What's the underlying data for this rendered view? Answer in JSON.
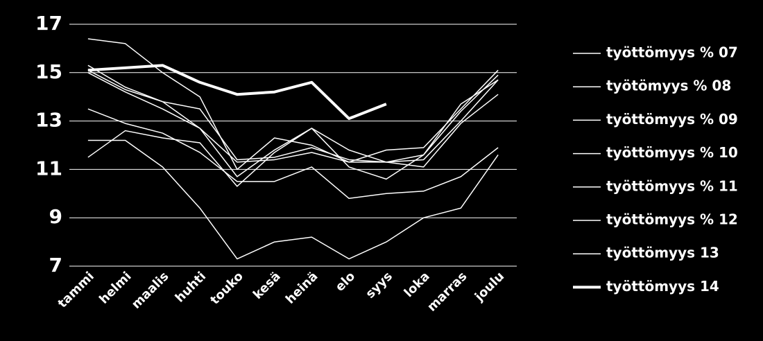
{
  "chart_data": {
    "type": "line",
    "categories": [
      "tammi",
      "helmi",
      "maalis",
      "huhti",
      "touko",
      "kesä",
      "heinä",
      "elo",
      "syys",
      "loka",
      "marras",
      "joulu"
    ],
    "series": [
      {
        "name": "työttömyys % 07",
        "color": "#ffffff",
        "width": 1.5,
        "values": [
          12.2,
          12.2,
          11.1,
          9.4,
          7.3,
          8.0,
          8.2,
          7.3,
          8.0,
          9.0,
          9.4,
          11.6
        ]
      },
      {
        "name": "työtömyys % 08",
        "color": "#ffffff",
        "width": 1.5,
        "values": [
          13.5,
          12.9,
          12.5,
          11.7,
          10.5,
          10.5,
          11.1,
          9.8,
          10.0,
          10.1,
          10.7,
          11.9
        ]
      },
      {
        "name": "työttömyys % 09",
        "color": "#ffffff",
        "width": 1.5,
        "values": [
          16.4,
          16.2,
          15.0,
          14.0,
          11.0,
          12.3,
          12.0,
          11.3,
          11.3,
          11.6,
          13.4,
          14.9
        ]
      },
      {
        "name": "työttömyys % 10",
        "color": "#ffffff",
        "width": 1.5,
        "values": [
          11.5,
          12.6,
          12.3,
          12.1,
          10.3,
          11.7,
          12.7,
          11.1,
          10.6,
          11.6,
          13.7,
          14.7
        ]
      },
      {
        "name": "työttömyys % 11",
        "color": "#ffffff",
        "width": 1.5,
        "values": [
          15.3,
          14.4,
          13.8,
          13.5,
          11.4,
          11.5,
          11.9,
          11.4,
          11.3,
          11.4,
          13.0,
          14.7
        ]
      },
      {
        "name": "työttömyys % 12",
        "color": "#ffffff",
        "width": 1.5,
        "values": [
          15.0,
          14.2,
          13.5,
          12.7,
          10.7,
          11.8,
          12.7,
          11.8,
          11.3,
          11.1,
          12.9,
          14.1
        ]
      },
      {
        "name": "työttömyys 13",
        "color": "#ffffff",
        "width": 1.5,
        "values": [
          15.1,
          14.3,
          13.8,
          12.7,
          11.3,
          11.4,
          11.7,
          11.3,
          11.8,
          11.9,
          13.5,
          15.1
        ]
      },
      {
        "name": "työttömyys 14",
        "color": "#ffffff",
        "width": 4,
        "values": [
          15.1,
          15.2,
          15.3,
          14.6,
          14.1,
          14.2,
          14.6,
          13.1,
          13.7,
          null,
          null,
          null
        ]
      }
    ],
    "ylim": [
      7,
      17
    ],
    "yticks": [
      7,
      9,
      11,
      13,
      15,
      17
    ],
    "grid": true,
    "legend": "right"
  }
}
